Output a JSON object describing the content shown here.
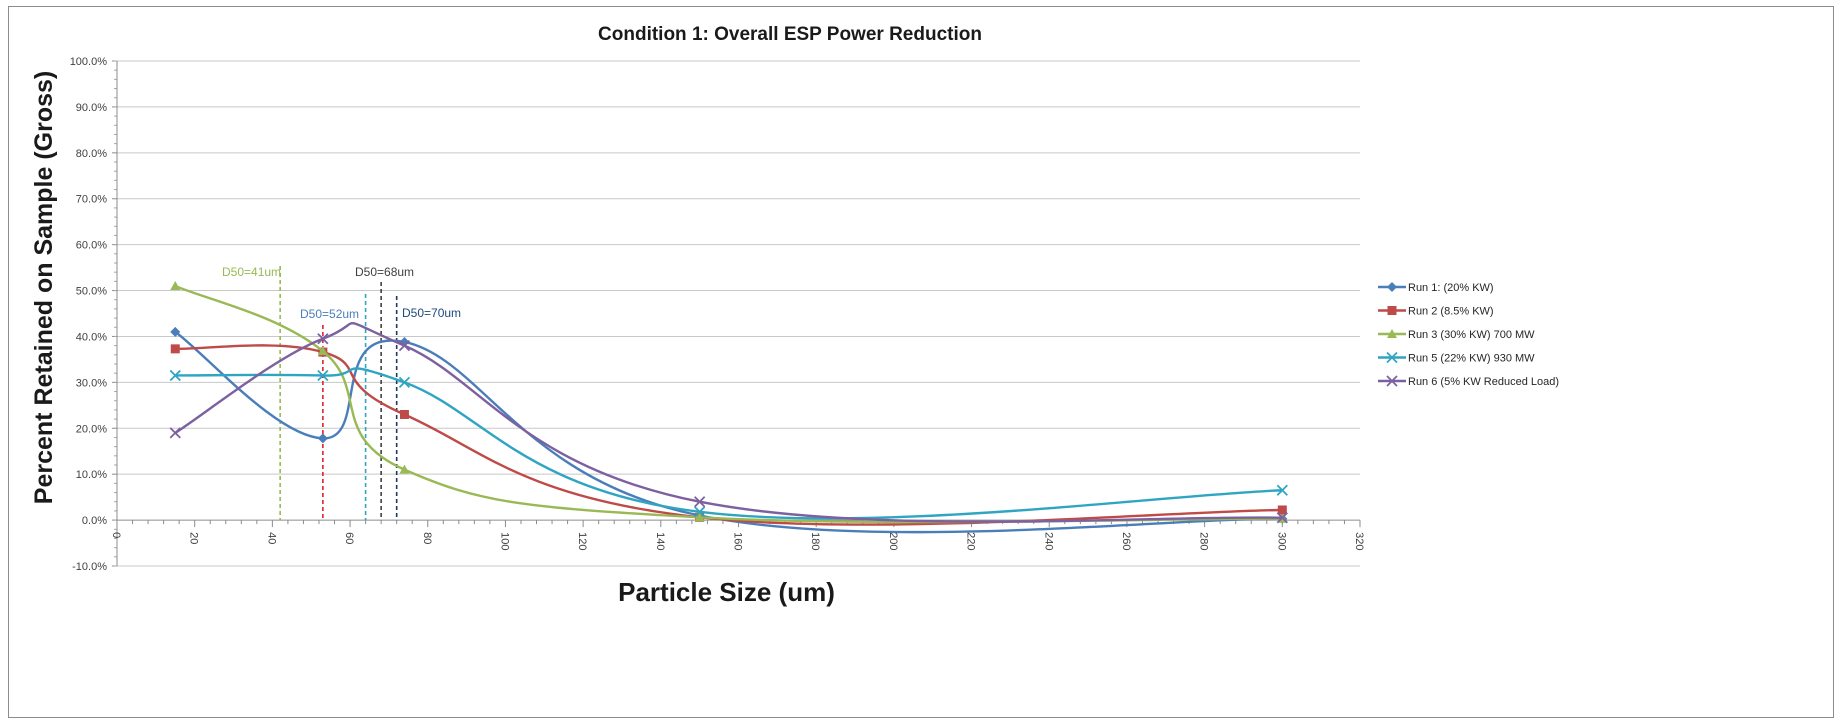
{
  "chart_data": {
    "type": "line",
    "title": "Condition 1: Overall ESP Power Reduction",
    "xlabel": "Particle Size (um)",
    "ylabel": "Percent Retained on Sample (Gross)",
    "xlim": [
      0,
      320
    ],
    "ylim": [
      -10,
      100
    ],
    "x_ticks": [
      "0",
      "20",
      "40",
      "60",
      "80",
      "100",
      "120",
      "140",
      "160",
      "180",
      "200",
      "220",
      "240",
      "260",
      "280",
      "300",
      "320"
    ],
    "y_ticks": [
      "100.0%",
      "90.0%",
      "80.0%",
      "70.0%",
      "60.0%",
      "50.0%",
      "40.0%",
      "30.0%",
      "20.0%",
      "10.0%",
      "0.0%",
      "-10.0%"
    ],
    "grid": "horizontal",
    "legend_position": "right",
    "x": [
      15,
      53,
      74,
      150,
      300
    ],
    "series": [
      {
        "name": "Run 1: (20% KW)",
        "color": "#4a7ebb",
        "marker": "diamond",
        "values": [
          41.0,
          17.8,
          38.8,
          1.0,
          0.3
        ]
      },
      {
        "name": "Run 2 (8.5% KW)",
        "color": "#be4b48",
        "marker": "square",
        "values": [
          37.3,
          36.6,
          23.0,
          0.6,
          2.2
        ]
      },
      {
        "name": "Run 3 (30% KW) 700 MW",
        "color": "#98b954",
        "marker": "triangle",
        "values": [
          51.0,
          36.8,
          11.0,
          0.6,
          0.3
        ]
      },
      {
        "name": "Run 5 (22% KW) 930 MW",
        "color": "#2fa5c2",
        "marker": "x",
        "values": [
          31.5,
          31.5,
          30.0,
          1.8,
          6.5
        ]
      },
      {
        "name": "Run 6 (5% KW Reduced Load)",
        "color": "#7d60a0",
        "marker": "x",
        "values": [
          19.0,
          39.5,
          38.0,
          4.0,
          0.5
        ]
      }
    ],
    "annotations": [
      {
        "label": "D50=41um",
        "x": 42,
        "color": "#98b954"
      },
      {
        "label": "D50=52um",
        "x": 53,
        "color": "#4a7ebb"
      },
      {
        "label": "D50=68um",
        "x": 68,
        "color": "#404040"
      },
      {
        "label": "D50=70um",
        "x": 72,
        "color": "#1f497d"
      }
    ],
    "annotation_lines": [
      {
        "x": 42,
        "color": "#98b954"
      },
      {
        "x": 53,
        "color": "#e0202a"
      },
      {
        "x": 64,
        "color": "#2fa5c2"
      },
      {
        "x": 68,
        "color": "#404040"
      },
      {
        "x": 72,
        "color": "#1f3864"
      }
    ]
  }
}
